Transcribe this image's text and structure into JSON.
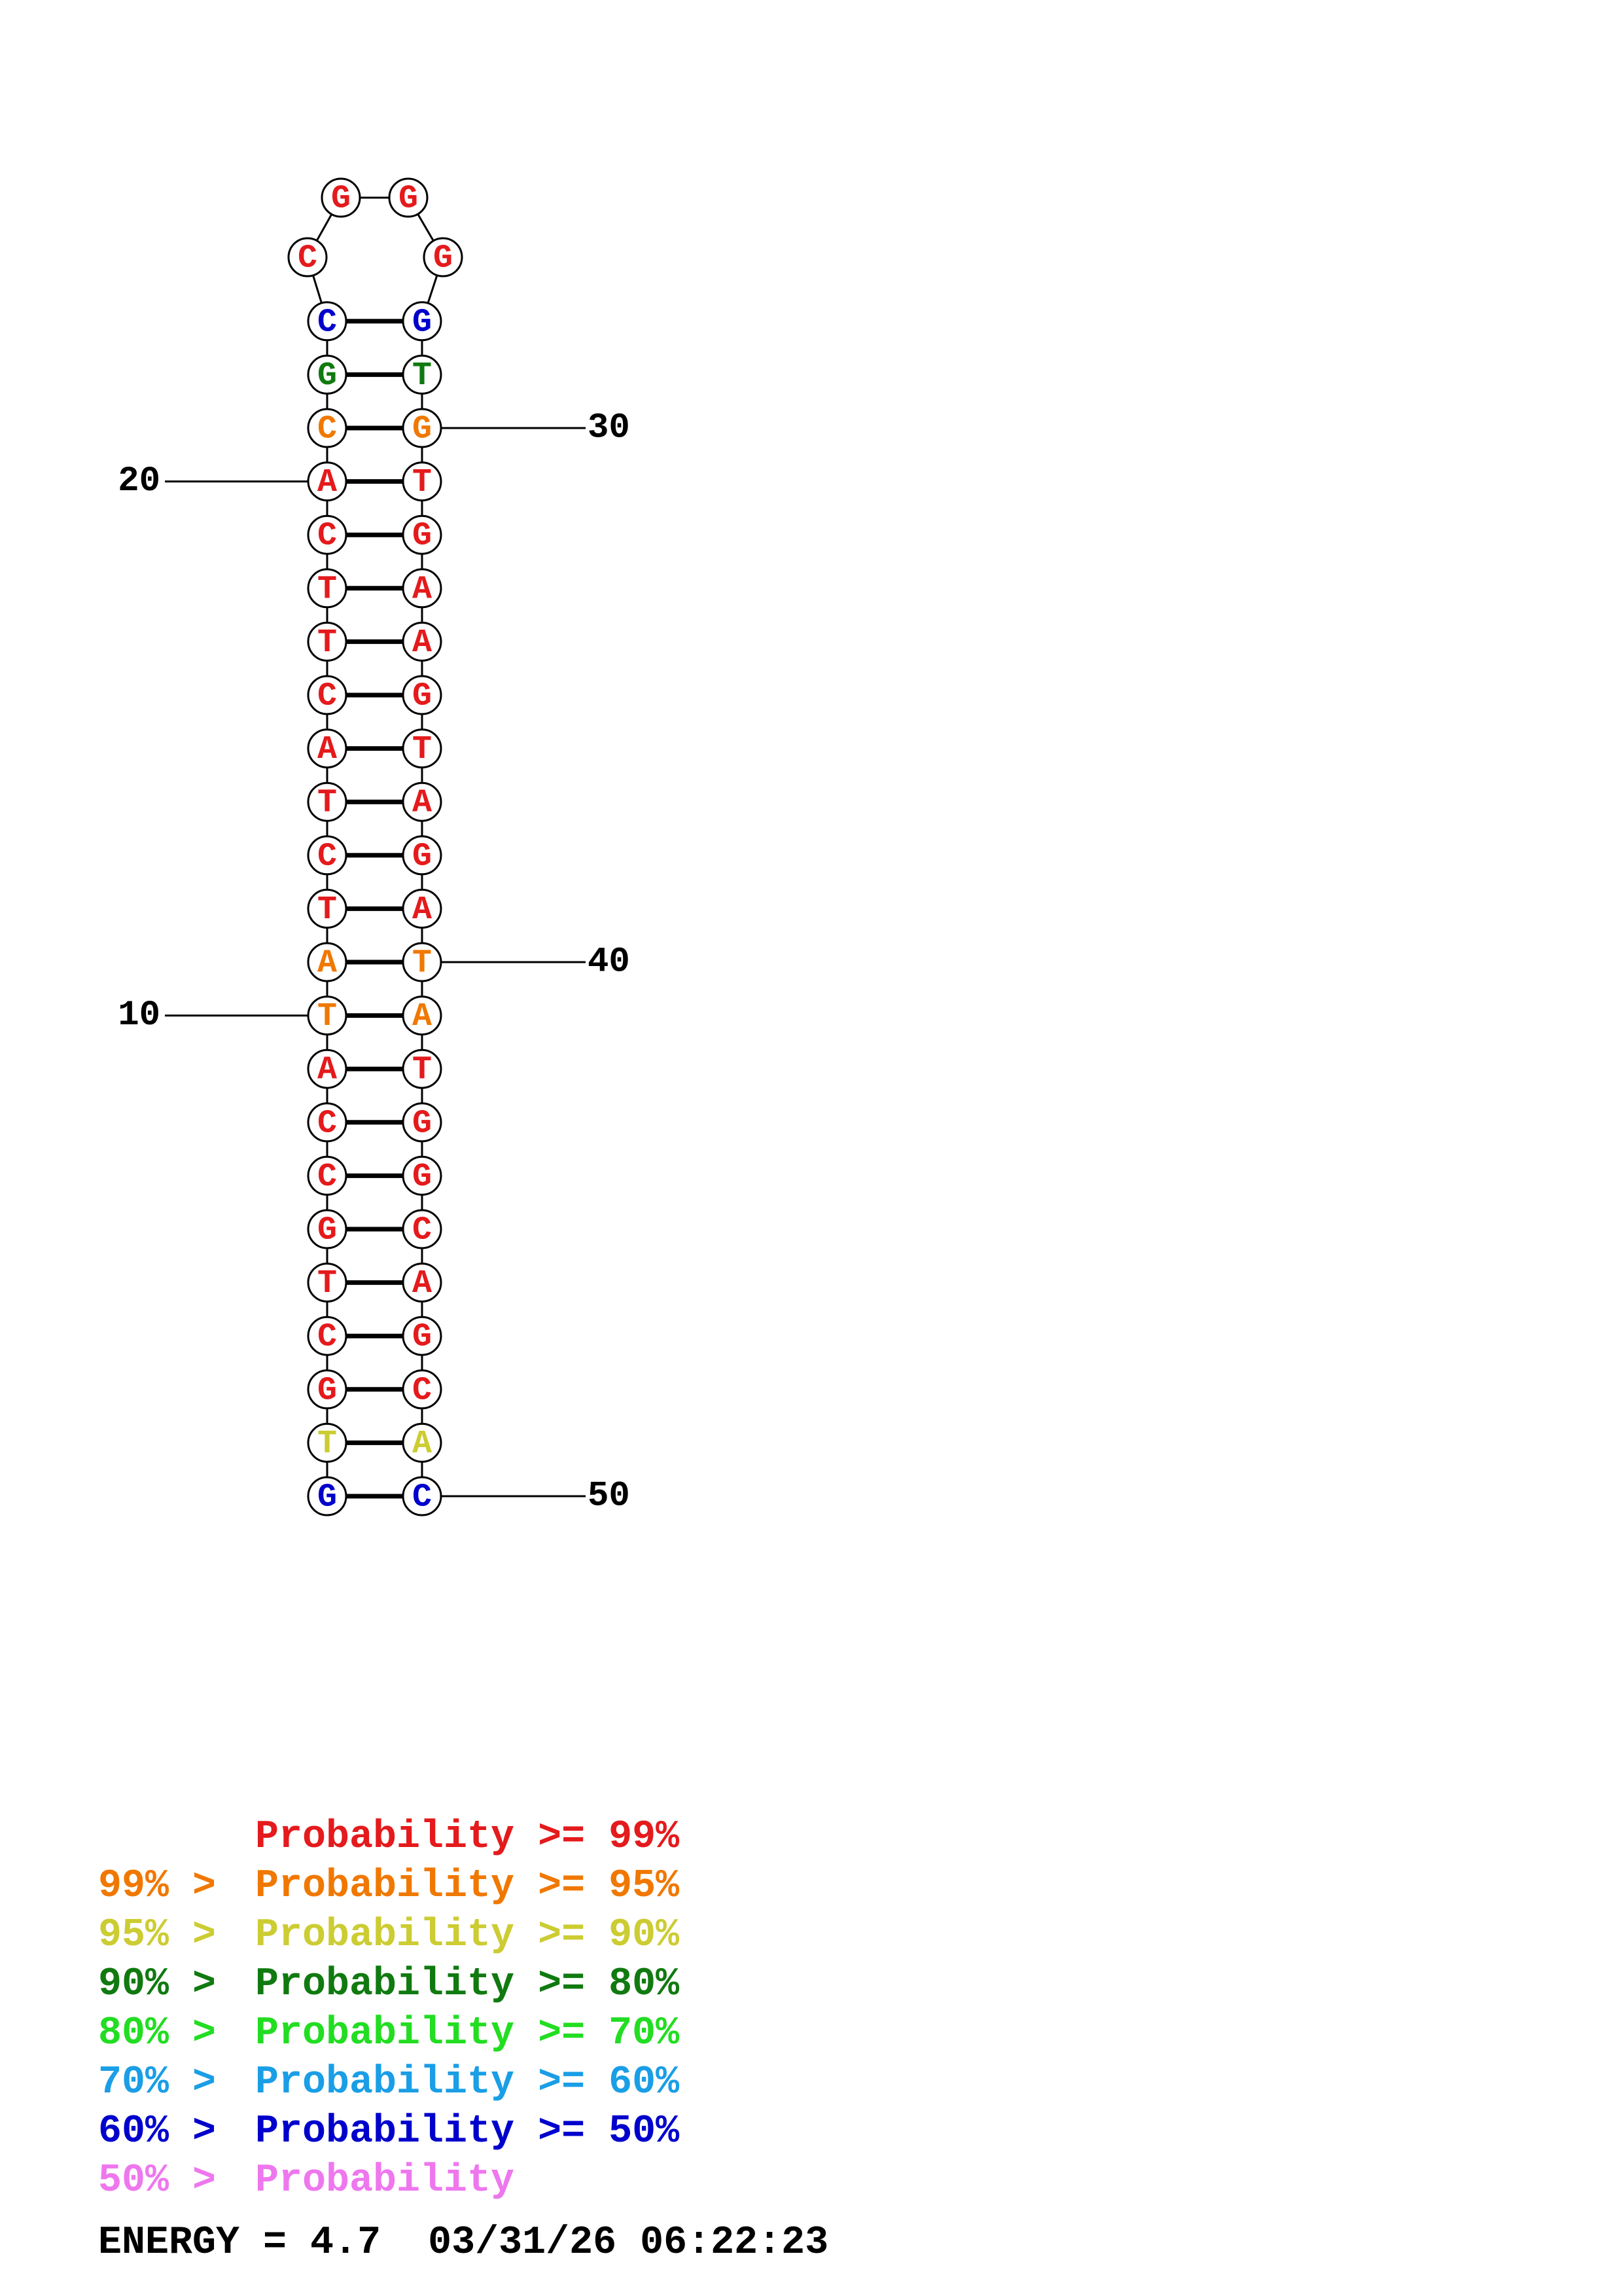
{
  "colors": {
    "p99": "#e41a1c",
    "p95": "#f07800",
    "p90": "#cccc33",
    "p80": "#107a10",
    "p70": "#22dd22",
    "p60": "#1a9ee6",
    "p50": "#0000cc",
    "p0": "#ee77ee",
    "line": "#000000"
  },
  "structure": {
    "left_strand": [
      {
        "base": "G",
        "color": "p50"
      },
      {
        "base": "T",
        "color": "p90"
      },
      {
        "base": "G",
        "color": "p99"
      },
      {
        "base": "C",
        "color": "p99"
      },
      {
        "base": "T",
        "color": "p99"
      },
      {
        "base": "G",
        "color": "p99"
      },
      {
        "base": "C",
        "color": "p99"
      },
      {
        "base": "C",
        "color": "p99"
      },
      {
        "base": "A",
        "color": "p99"
      },
      {
        "base": "T",
        "color": "p95"
      },
      {
        "base": "A",
        "color": "p95"
      },
      {
        "base": "T",
        "color": "p99"
      },
      {
        "base": "C",
        "color": "p99"
      },
      {
        "base": "T",
        "color": "p99"
      },
      {
        "base": "A",
        "color": "p99"
      },
      {
        "base": "C",
        "color": "p99"
      },
      {
        "base": "T",
        "color": "p99"
      },
      {
        "base": "T",
        "color": "p99"
      },
      {
        "base": "C",
        "color": "p99"
      },
      {
        "base": "A",
        "color": "p99"
      },
      {
        "base": "C",
        "color": "p95"
      },
      {
        "base": "G",
        "color": "p80"
      },
      {
        "base": "C",
        "color": "p50"
      }
    ],
    "loop": [
      {
        "base": "C",
        "color": "p99"
      },
      {
        "base": "G",
        "color": "p99"
      },
      {
        "base": "G",
        "color": "p99"
      },
      {
        "base": "G",
        "color": "p99"
      }
    ],
    "right_strand": [
      {
        "base": "G",
        "color": "p50"
      },
      {
        "base": "T",
        "color": "p80"
      },
      {
        "base": "G",
        "color": "p95"
      },
      {
        "base": "T",
        "color": "p99"
      },
      {
        "base": "G",
        "color": "p99"
      },
      {
        "base": "A",
        "color": "p99"
      },
      {
        "base": "A",
        "color": "p99"
      },
      {
        "base": "G",
        "color": "p99"
      },
      {
        "base": "T",
        "color": "p99"
      },
      {
        "base": "A",
        "color": "p99"
      },
      {
        "base": "G",
        "color": "p99"
      },
      {
        "base": "A",
        "color": "p99"
      },
      {
        "base": "T",
        "color": "p95"
      },
      {
        "base": "A",
        "color": "p95"
      },
      {
        "base": "T",
        "color": "p99"
      },
      {
        "base": "G",
        "color": "p99"
      },
      {
        "base": "G",
        "color": "p99"
      },
      {
        "base": "C",
        "color": "p99"
      },
      {
        "base": "A",
        "color": "p99"
      },
      {
        "base": "G",
        "color": "p99"
      },
      {
        "base": "C",
        "color": "p99"
      },
      {
        "base": "A",
        "color": "p90"
      },
      {
        "base": "C",
        "color": "p50"
      }
    ],
    "position_labels": [
      {
        "text": "10",
        "nt": 10
      },
      {
        "text": "20",
        "nt": 20
      },
      {
        "text": "30",
        "nt": 30
      },
      {
        "text": "40",
        "nt": 40
      },
      {
        "text": "50",
        "nt": 50
      }
    ]
  },
  "legend": [
    {
      "prefix": "",
      "text": "Probability >= 99%",
      "color": "p99"
    },
    {
      "prefix": "99% > ",
      "text": "Probability >= 95%",
      "color": "p95"
    },
    {
      "prefix": "95% > ",
      "text": "Probability >= 90%",
      "color": "p90"
    },
    {
      "prefix": "90% > ",
      "text": "Probability >= 80%",
      "color": "p80"
    },
    {
      "prefix": "80% > ",
      "text": "Probability >= 70%",
      "color": "p70"
    },
    {
      "prefix": "70% > ",
      "text": "Probability >= 60%",
      "color": "p60"
    },
    {
      "prefix": "60% > ",
      "text": "Probability >= 50%",
      "color": "p50"
    },
    {
      "prefix": "50% > ",
      "text": "Probability",
      "color": "p0"
    }
  ],
  "footer": {
    "energy": "ENERGY = 4.7",
    "timestamp": "03/31/26 06:22:23"
  }
}
